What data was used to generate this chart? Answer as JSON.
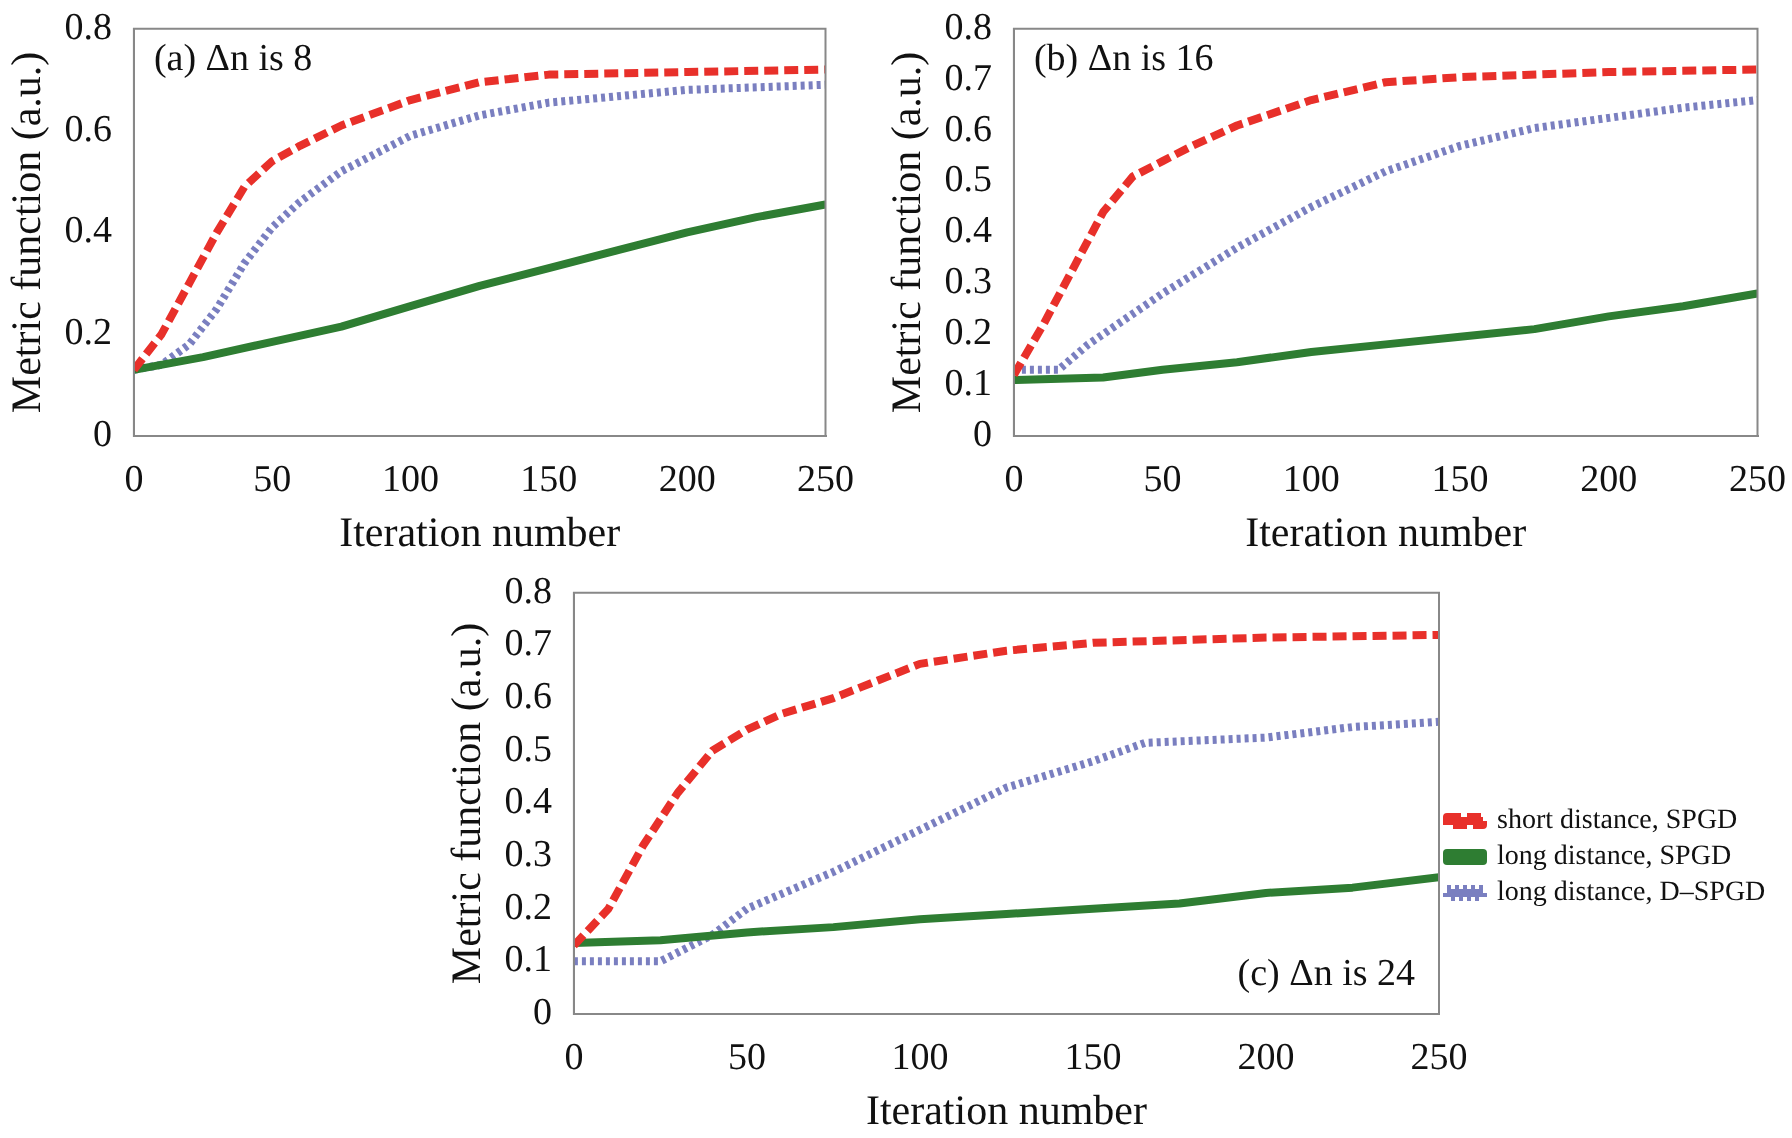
{
  "chart_data": [
    {
      "type": "line",
      "xlabel": "Iteration number",
      "ylabel": "Metric function (a.u.)",
      "annotations": [
        "(a) Δn is 8"
      ],
      "xlim": [
        0,
        250
      ],
      "xticks": [
        0,
        50,
        100,
        150,
        200,
        250
      ],
      "ylim": [
        0,
        0.8
      ],
      "yticks": [
        0,
        0.2,
        0.4,
        0.6,
        0.8
      ],
      "grid": false,
      "legend": false,
      "marker": "none",
      "series": [
        {
          "color": "#e8302a",
          "line_style": "dashed",
          "x": [
            0,
            10,
            20,
            30,
            40,
            50,
            60,
            75,
            100,
            125,
            150,
            200,
            250
          ],
          "values": [
            0.13,
            0.2,
            0.3,
            0.4,
            0.49,
            0.54,
            0.57,
            0.61,
            0.66,
            0.695,
            0.71,
            0.715,
            0.72
          ]
        },
        {
          "color": "#2e7d32",
          "line_style": "solid",
          "x": [
            0,
            25,
            50,
            75,
            100,
            125,
            150,
            175,
            200,
            225,
            250
          ],
          "values": [
            0.13,
            0.155,
            0.185,
            0.215,
            0.255,
            0.295,
            0.33,
            0.365,
            0.4,
            0.43,
            0.455
          ]
        },
        {
          "color": "#7a7fc0",
          "line_style": "dotted",
          "x": [
            0,
            10,
            20,
            30,
            40,
            50,
            60,
            75,
            100,
            125,
            150,
            200,
            250
          ],
          "values": [
            0.13,
            0.14,
            0.18,
            0.25,
            0.34,
            0.41,
            0.46,
            0.52,
            0.59,
            0.63,
            0.655,
            0.68,
            0.69
          ]
        }
      ]
    },
    {
      "type": "line",
      "xlabel": "Iteration number",
      "ylabel": "Metric function (a.u.)",
      "annotations": [
        "(b) Δn is 16"
      ],
      "xlim": [
        0,
        250
      ],
      "xticks": [
        0,
        50,
        100,
        150,
        200,
        250
      ],
      "ylim": [
        0,
        0.8
      ],
      "yticks": [
        0,
        0.1,
        0.2,
        0.3,
        0.4,
        0.5,
        0.6,
        0.7,
        0.8
      ],
      "grid": false,
      "legend": false,
      "marker": "none",
      "series": [
        {
          "color": "#e8302a",
          "line_style": "dashed",
          "x": [
            0,
            10,
            20,
            30,
            40,
            50,
            60,
            75,
            100,
            125,
            150,
            200,
            250
          ],
          "values": [
            0.12,
            0.22,
            0.33,
            0.44,
            0.51,
            0.54,
            0.57,
            0.61,
            0.66,
            0.695,
            0.705,
            0.715,
            0.72
          ]
        },
        {
          "color": "#2e7d32",
          "line_style": "solid",
          "x": [
            0,
            30,
            50,
            75,
            100,
            125,
            150,
            175,
            200,
            225,
            250
          ],
          "values": [
            0.11,
            0.115,
            0.13,
            0.145,
            0.165,
            0.18,
            0.195,
            0.21,
            0.235,
            0.255,
            0.28
          ]
        },
        {
          "color": "#7a7fc0",
          "line_style": "dotted",
          "x": [
            0,
            15,
            25,
            50,
            75,
            100,
            125,
            150,
            175,
            200,
            225,
            250
          ],
          "values": [
            0.13,
            0.13,
            0.18,
            0.28,
            0.37,
            0.45,
            0.52,
            0.57,
            0.605,
            0.625,
            0.645,
            0.66
          ]
        }
      ]
    },
    {
      "type": "line",
      "xlabel": "Iteration number",
      "ylabel": "Metric function (a.u.)",
      "annotations": [
        "(c) Δn is 24"
      ],
      "xlim": [
        0,
        250
      ],
      "xticks": [
        0,
        50,
        100,
        150,
        200,
        250
      ],
      "ylim": [
        0,
        0.8
      ],
      "yticks": [
        0,
        0.1,
        0.2,
        0.3,
        0.4,
        0.5,
        0.6,
        0.7,
        0.8
      ],
      "grid": false,
      "legend": "right",
      "marker": "none",
      "series": [
        {
          "name": "short distance, SPGD",
          "color": "#e8302a",
          "line_style": "dashed",
          "x": [
            0,
            10,
            20,
            30,
            40,
            50,
            60,
            75,
            100,
            125,
            150,
            200,
            250
          ],
          "values": [
            0.13,
            0.2,
            0.32,
            0.42,
            0.5,
            0.54,
            0.57,
            0.6,
            0.665,
            0.69,
            0.705,
            0.715,
            0.72
          ]
        },
        {
          "name": "long distance, SPGD",
          "color": "#2e7d32",
          "line_style": "solid",
          "x": [
            0,
            25,
            50,
            75,
            100,
            125,
            150,
            175,
            200,
            225,
            250
          ],
          "values": [
            0.135,
            0.14,
            0.155,
            0.165,
            0.18,
            0.19,
            0.2,
            0.21,
            0.23,
            0.24,
            0.26
          ]
        },
        {
          "name": "long distance, D–SPGD",
          "color": "#7a7fc0",
          "line_style": "dotted",
          "x": [
            0,
            25,
            40,
            50,
            75,
            100,
            125,
            150,
            165,
            200,
            225,
            250
          ],
          "values": [
            0.1,
            0.1,
            0.15,
            0.2,
            0.27,
            0.35,
            0.43,
            0.48,
            0.515,
            0.525,
            0.545,
            0.555
          ]
        }
      ]
    }
  ]
}
